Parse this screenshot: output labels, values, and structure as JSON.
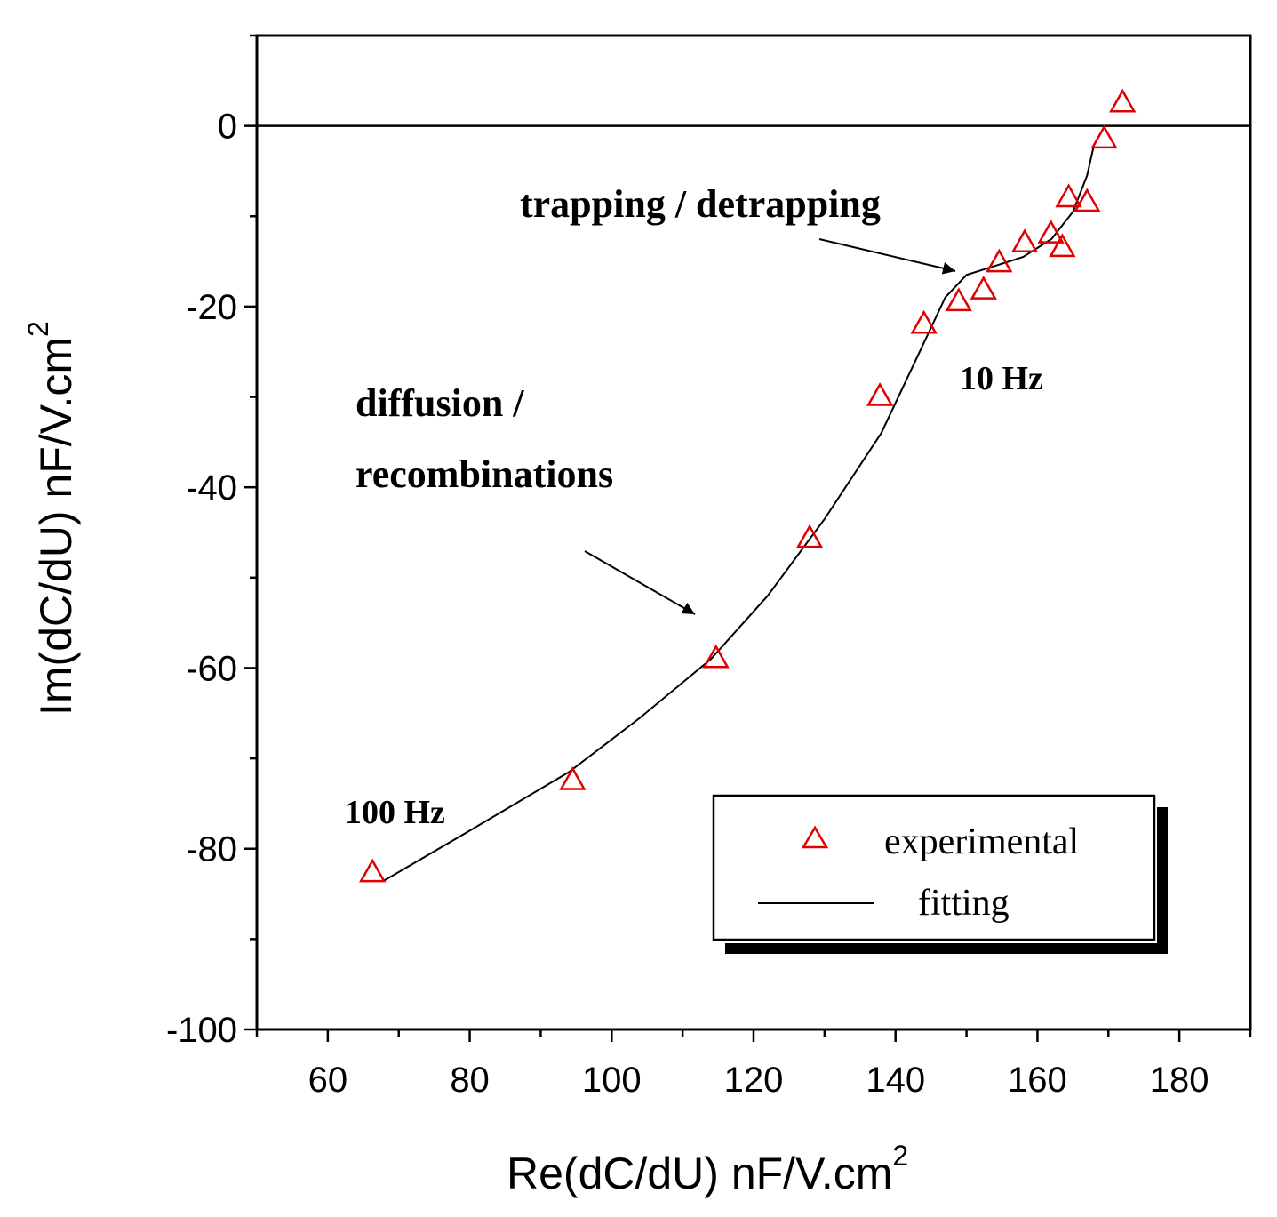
{
  "chart_data": {
    "type": "scatter",
    "title": "",
    "xlabel": "Re(dC/dU)  nF/V.cm",
    "xlabel_sup": "2",
    "ylabel": "Im(dC/dU)  nF/V.cm",
    "ylabel_sup": "2",
    "xlim": [
      50,
      190
    ],
    "ylim": [
      -100,
      10
    ],
    "xticks": [
      60,
      80,
      100,
      120,
      140,
      160,
      180
    ],
    "yticks": [
      0,
      -20,
      -40,
      -60,
      -80,
      -100
    ],
    "xtick_labels": [
      "60",
      "80",
      "100",
      "120",
      "140",
      "160",
      "180"
    ],
    "ytick_labels": [
      "0",
      "-20",
      "-40",
      "-60",
      "-80",
      "-100"
    ],
    "zero_line": 0,
    "grid": false,
    "legend_position": "bottom-right",
    "series": [
      {
        "name": "experimental",
        "kind": "markers",
        "marker": "triangle-open",
        "color": "#e00000",
        "x": [
          66.3,
          94.5,
          114.7,
          127.9,
          137.8,
          144.0,
          148.9,
          152.4,
          154.6,
          158.2,
          161.9,
          163.5,
          164.4,
          167.0,
          169.4,
          172.0
        ],
        "y": [
          -82.7,
          -72.5,
          -59.0,
          -45.7,
          -30.0,
          -22.0,
          -19.5,
          -18.2,
          -15.2,
          -13.0,
          -12.0,
          -13.5,
          -8.0,
          -8.5,
          -1.5,
          2.5
        ]
      },
      {
        "name": "fitting",
        "kind": "line",
        "color": "#000000",
        "x": [
          68,
          80,
          94,
          104,
          114,
          122,
          130,
          138,
          144,
          147,
          150,
          154,
          158,
          162,
          165,
          167,
          168
        ],
        "y": [
          -83.5,
          -78,
          -71.5,
          -65.5,
          -59,
          -52,
          -43.5,
          -34,
          -24,
          -19,
          -16.5,
          -15.5,
          -14.5,
          -12.5,
          -9.5,
          -5.5,
          -2
        ]
      }
    ],
    "annotations": [
      {
        "text": "trapping / detrapping",
        "arrow_to": [
          149.5,
          -16.5
        ]
      },
      {
        "text": "diffusion /",
        "arrow_to": [
          116.5,
          -54.5
        ]
      },
      {
        "text": "recombinations"
      },
      {
        "text": "10 Hz"
      },
      {
        "text": "100 Hz"
      }
    ]
  }
}
